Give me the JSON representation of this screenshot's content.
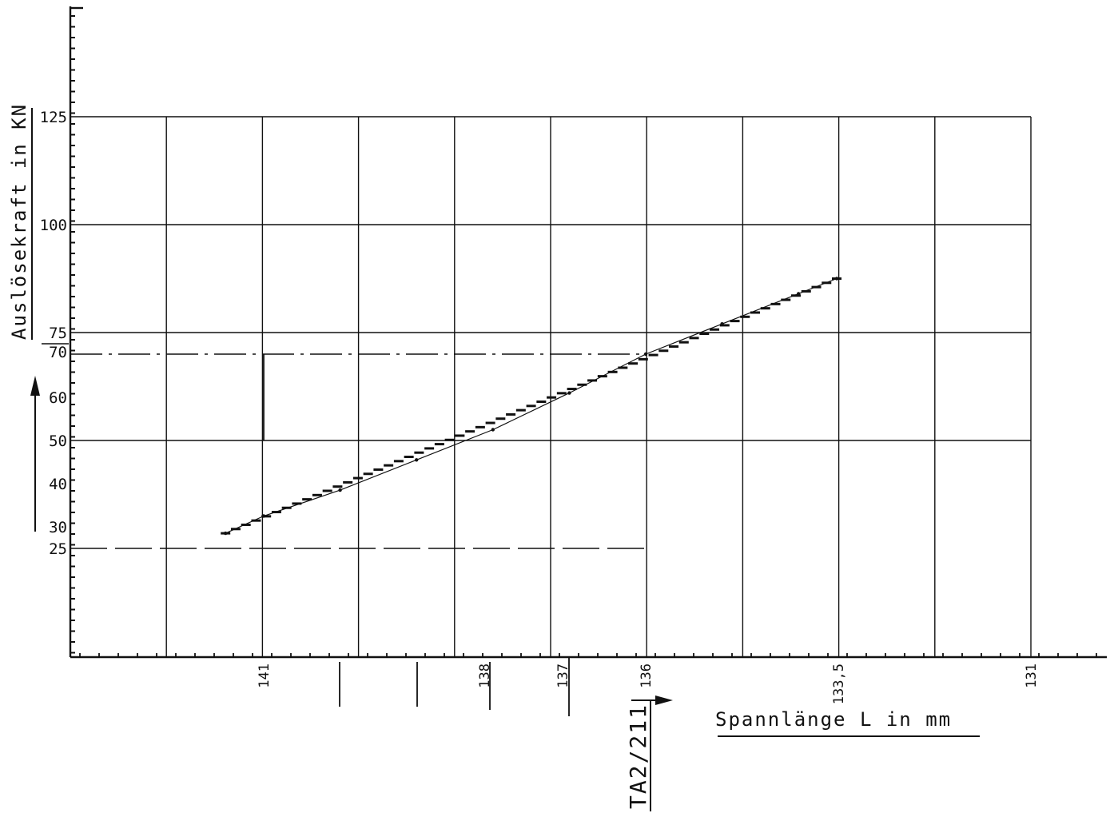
{
  "chart_data": {
    "type": "line",
    "xlabel": "Spannlänge L in mm",
    "ylabel": "Auslösekraft in KN",
    "annotation": "TA2/211",
    "x_tick_labels": [
      "141",
      "138",
      "137",
      "136",
      "133,5",
      "131"
    ],
    "y_tick_labels": [
      "125",
      "100",
      "75",
      "70",
      "60",
      "50",
      "40",
      "30",
      "25"
    ],
    "y_tick_values": [
      125,
      100,
      75,
      70,
      60,
      50,
      40,
      30,
      25
    ],
    "ylim": [
      0,
      125
    ],
    "grid": true,
    "series": [
      {
        "x": [
          141.5,
          141.0,
          140.0,
          139.0,
          138.0,
          137.0,
          136.0,
          135.0,
          134.0,
          133.5
        ],
        "y": [
          28.5,
          32.5,
          38.5,
          45.5,
          52.5,
          61.0,
          70.0,
          77.0,
          84.0,
          87.5
        ]
      }
    ],
    "reference_lines": [
      {
        "y": 70,
        "style": "dash-dot"
      },
      {
        "y": 25,
        "style": "dashed"
      }
    ],
    "colors": {
      "ink": "#111111",
      "background": "#ffffff"
    }
  }
}
